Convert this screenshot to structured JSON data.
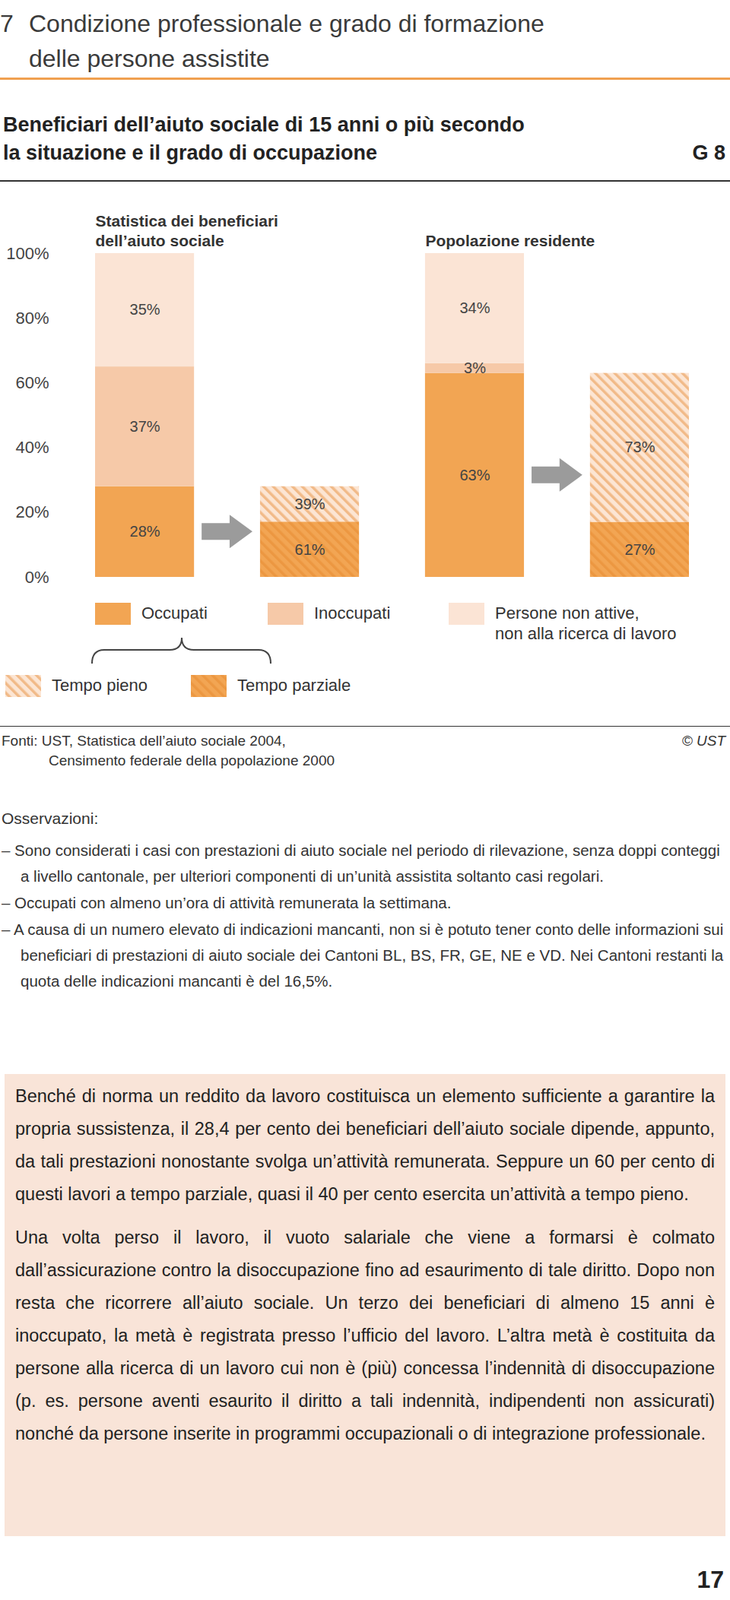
{
  "header": {
    "number": "7",
    "title": "Condizione professionale e grado di formazione\ndelle persone assistite"
  },
  "chart_data": {
    "type": "bar",
    "stacked": true,
    "data_labels": true,
    "title": "Beneficiari dell’aiuto sociale di 15 anni o più secondo\nla situazione e il grado di occupazione",
    "chart_number": "G 8",
    "categories": [
      "Statistica dei beneficiari\ndell’aiuto sociale",
      "Popolazione residente"
    ],
    "ylim": [
      0,
      100
    ],
    "yticks": [
      {
        "value": 0,
        "label": "0%"
      },
      {
        "value": 20,
        "label": "20%"
      },
      {
        "value": 40,
        "label": "40%"
      },
      {
        "value": 60,
        "label": "60%"
      },
      {
        "value": 80,
        "label": "80%"
      },
      {
        "value": 100,
        "label": "100%"
      }
    ],
    "series": [
      {
        "name": "Occupati",
        "color": "#f2a553",
        "values": [
          28,
          63
        ],
        "value_labels": [
          "28%",
          "63%"
        ]
      },
      {
        "name": "Inoccupati",
        "color": "#f6c9a8",
        "values": [
          37,
          3
        ],
        "value_labels": [
          "37%",
          "3%"
        ]
      },
      {
        "name": "Persone non attive,\nnon alla ricerca di lavoro",
        "color": "#fbe4d5",
        "values": [
          35,
          34
        ],
        "value_labels": [
          "35%",
          "34%"
        ]
      }
    ],
    "breakdown": {
      "of": "Occupati",
      "series": [
        {
          "name": "Tempo pieno",
          "color": "#fce5d3",
          "values": [
            39,
            73
          ],
          "value_labels": [
            "39%",
            "73%"
          ]
        },
        {
          "name": "Tempo parziale",
          "color": "#f2a553",
          "values": [
            61,
            27
          ],
          "value_labels": [
            "61%",
            "27%"
          ]
        }
      ]
    },
    "sources": [
      "Fonti: UST, Statistica dell’aiuto sociale 2004,",
      "Censimento federale della popolazione 2000"
    ],
    "copyright": "© UST",
    "notes_title": "Osservazioni:",
    "notes": [
      "– Sono considerati i casi con prestazioni di aiuto sociale nel periodo di rilevazione, senza doppi conteggi a livello cantonale, per ulteriori componenti di un’unità assistita soltanto casi regolari.",
      "– Occupati con almeno un’ora di attività remunerata la settimana.",
      "– A causa di un numero elevato di indicazioni mancanti, non si è potuto tener conto delle informazioni sui beneficiari di prestazioni di aiuto sociale dei Cantoni BL, BS, FR, GE, NE e VD. Nei Cantoni restanti la quota delle indicazioni mancanti è del 16,5%."
    ]
  },
  "text_box": {
    "paragraphs": [
      "Benché di norma un reddito da lavoro costituisca un elemento sufficiente a garantire la propria sussistenza, il 28,4 per cento dei beneficiari dell’aiuto sociale dipende, appunto, da tali prestazioni nonostante svolga un’attività remunerata. Seppure un 60 per cento di questi lavori a tempo parziale, quasi il 40 per cento esercita un’attività a tempo pieno.",
      "Una volta perso il lavoro, il vuoto salariale che viene a formarsi è colmato dall’assicurazione contro la disoccupazione fino ad esaurimento di tale diritto. Dopo non resta che ricorrere all’aiuto sociale. Un terzo dei beneficiari di almeno 15 anni è inoccupato, la metà è registrata presso l’ufficio del lavoro. L’altra metà è costituita da persone alla ricerca di un lavoro cui non è (più) concessa l’indennità di disoccupazione (p. es. persone aventi esaurito il diritto a tali indennità, indipendenti non assicurati) nonché da persone inserite in programmi occupazionali o di integrazione professionale."
    ]
  },
  "page_number": "17"
}
